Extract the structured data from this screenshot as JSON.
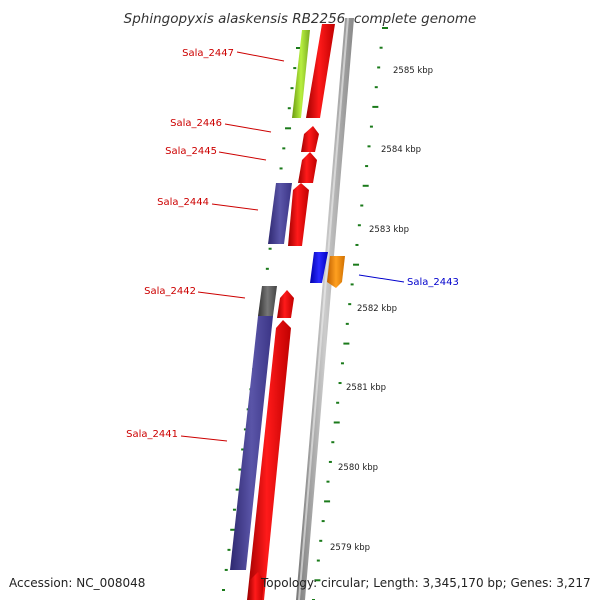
{
  "title": "Sphingopyxis alaskensis RB2256, complete genome",
  "footer": {
    "accession": "Accession: NC_008048",
    "summary": "Topology: circular; Length: 3,345,170 bp; Genes: 3,217"
  },
  "colors": {
    "forward_label": "#cc0000",
    "reverse_label": "#0000cc",
    "tick": "#1a7a1a",
    "cds_forward": "#ff0000",
    "cds_reverse": "#0000ff",
    "backbone": "#999999"
  },
  "ticks": [
    {
      "label": "2585 kbp"
    },
    {
      "label": "2584 kbp"
    },
    {
      "label": "2583 kbp"
    },
    {
      "label": "2582 kbp"
    },
    {
      "label": "2581 kbp"
    },
    {
      "label": "2580 kbp"
    },
    {
      "label": "2579 kbp"
    }
  ],
  "genes": [
    {
      "name": "Sala_2447",
      "strand": "forward"
    },
    {
      "name": "Sala_2446",
      "strand": "forward"
    },
    {
      "name": "Sala_2445",
      "strand": "forward"
    },
    {
      "name": "Sala_2444",
      "strand": "forward"
    },
    {
      "name": "Sala_2443",
      "strand": "reverse"
    },
    {
      "name": "Sala_2442",
      "strand": "forward"
    },
    {
      "name": "Sala_2441",
      "strand": "forward"
    }
  ]
}
